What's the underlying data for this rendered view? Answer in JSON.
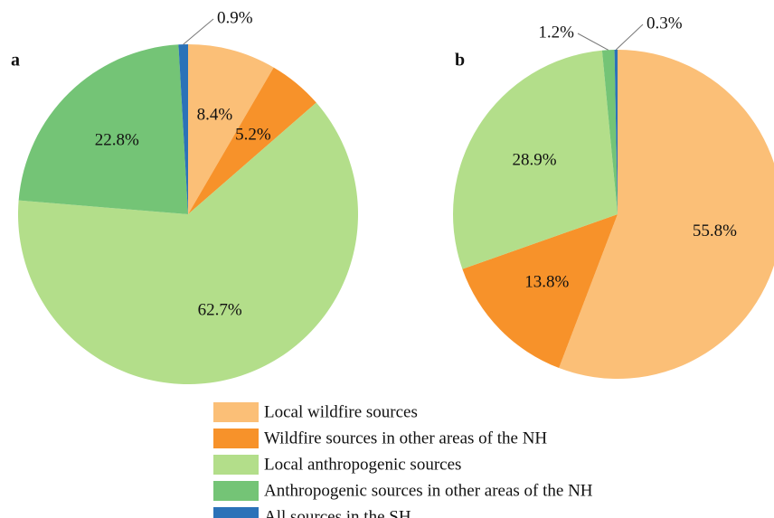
{
  "chart_data": [
    {
      "type": "pie",
      "panel": "a",
      "values": [
        8.4,
        5.2,
        62.7,
        22.8,
        0.9
      ],
      "value_labels": [
        "8.4%",
        "5.2%",
        "62.7%",
        "22.8%",
        "0.9%"
      ]
    },
    {
      "type": "pie",
      "panel": "b",
      "values": [
        55.8,
        13.8,
        28.9,
        1.2,
        0.3
      ],
      "value_labels": [
        "55.8%",
        "13.8%",
        "28.9%",
        "1.2%",
        "0.3%"
      ]
    }
  ],
  "legend": {
    "categories": [
      "Local wildfire sources",
      "Wildfire sources in  other areas of the NH",
      "Local anthropogenic sources",
      "Anthropogenic sources in other areas of the NH",
      "All sources in the SH"
    ],
    "colors": [
      "#fbbf77",
      "#f7922a",
      "#b3de8a",
      "#74c476",
      "#2b72b8"
    ]
  }
}
